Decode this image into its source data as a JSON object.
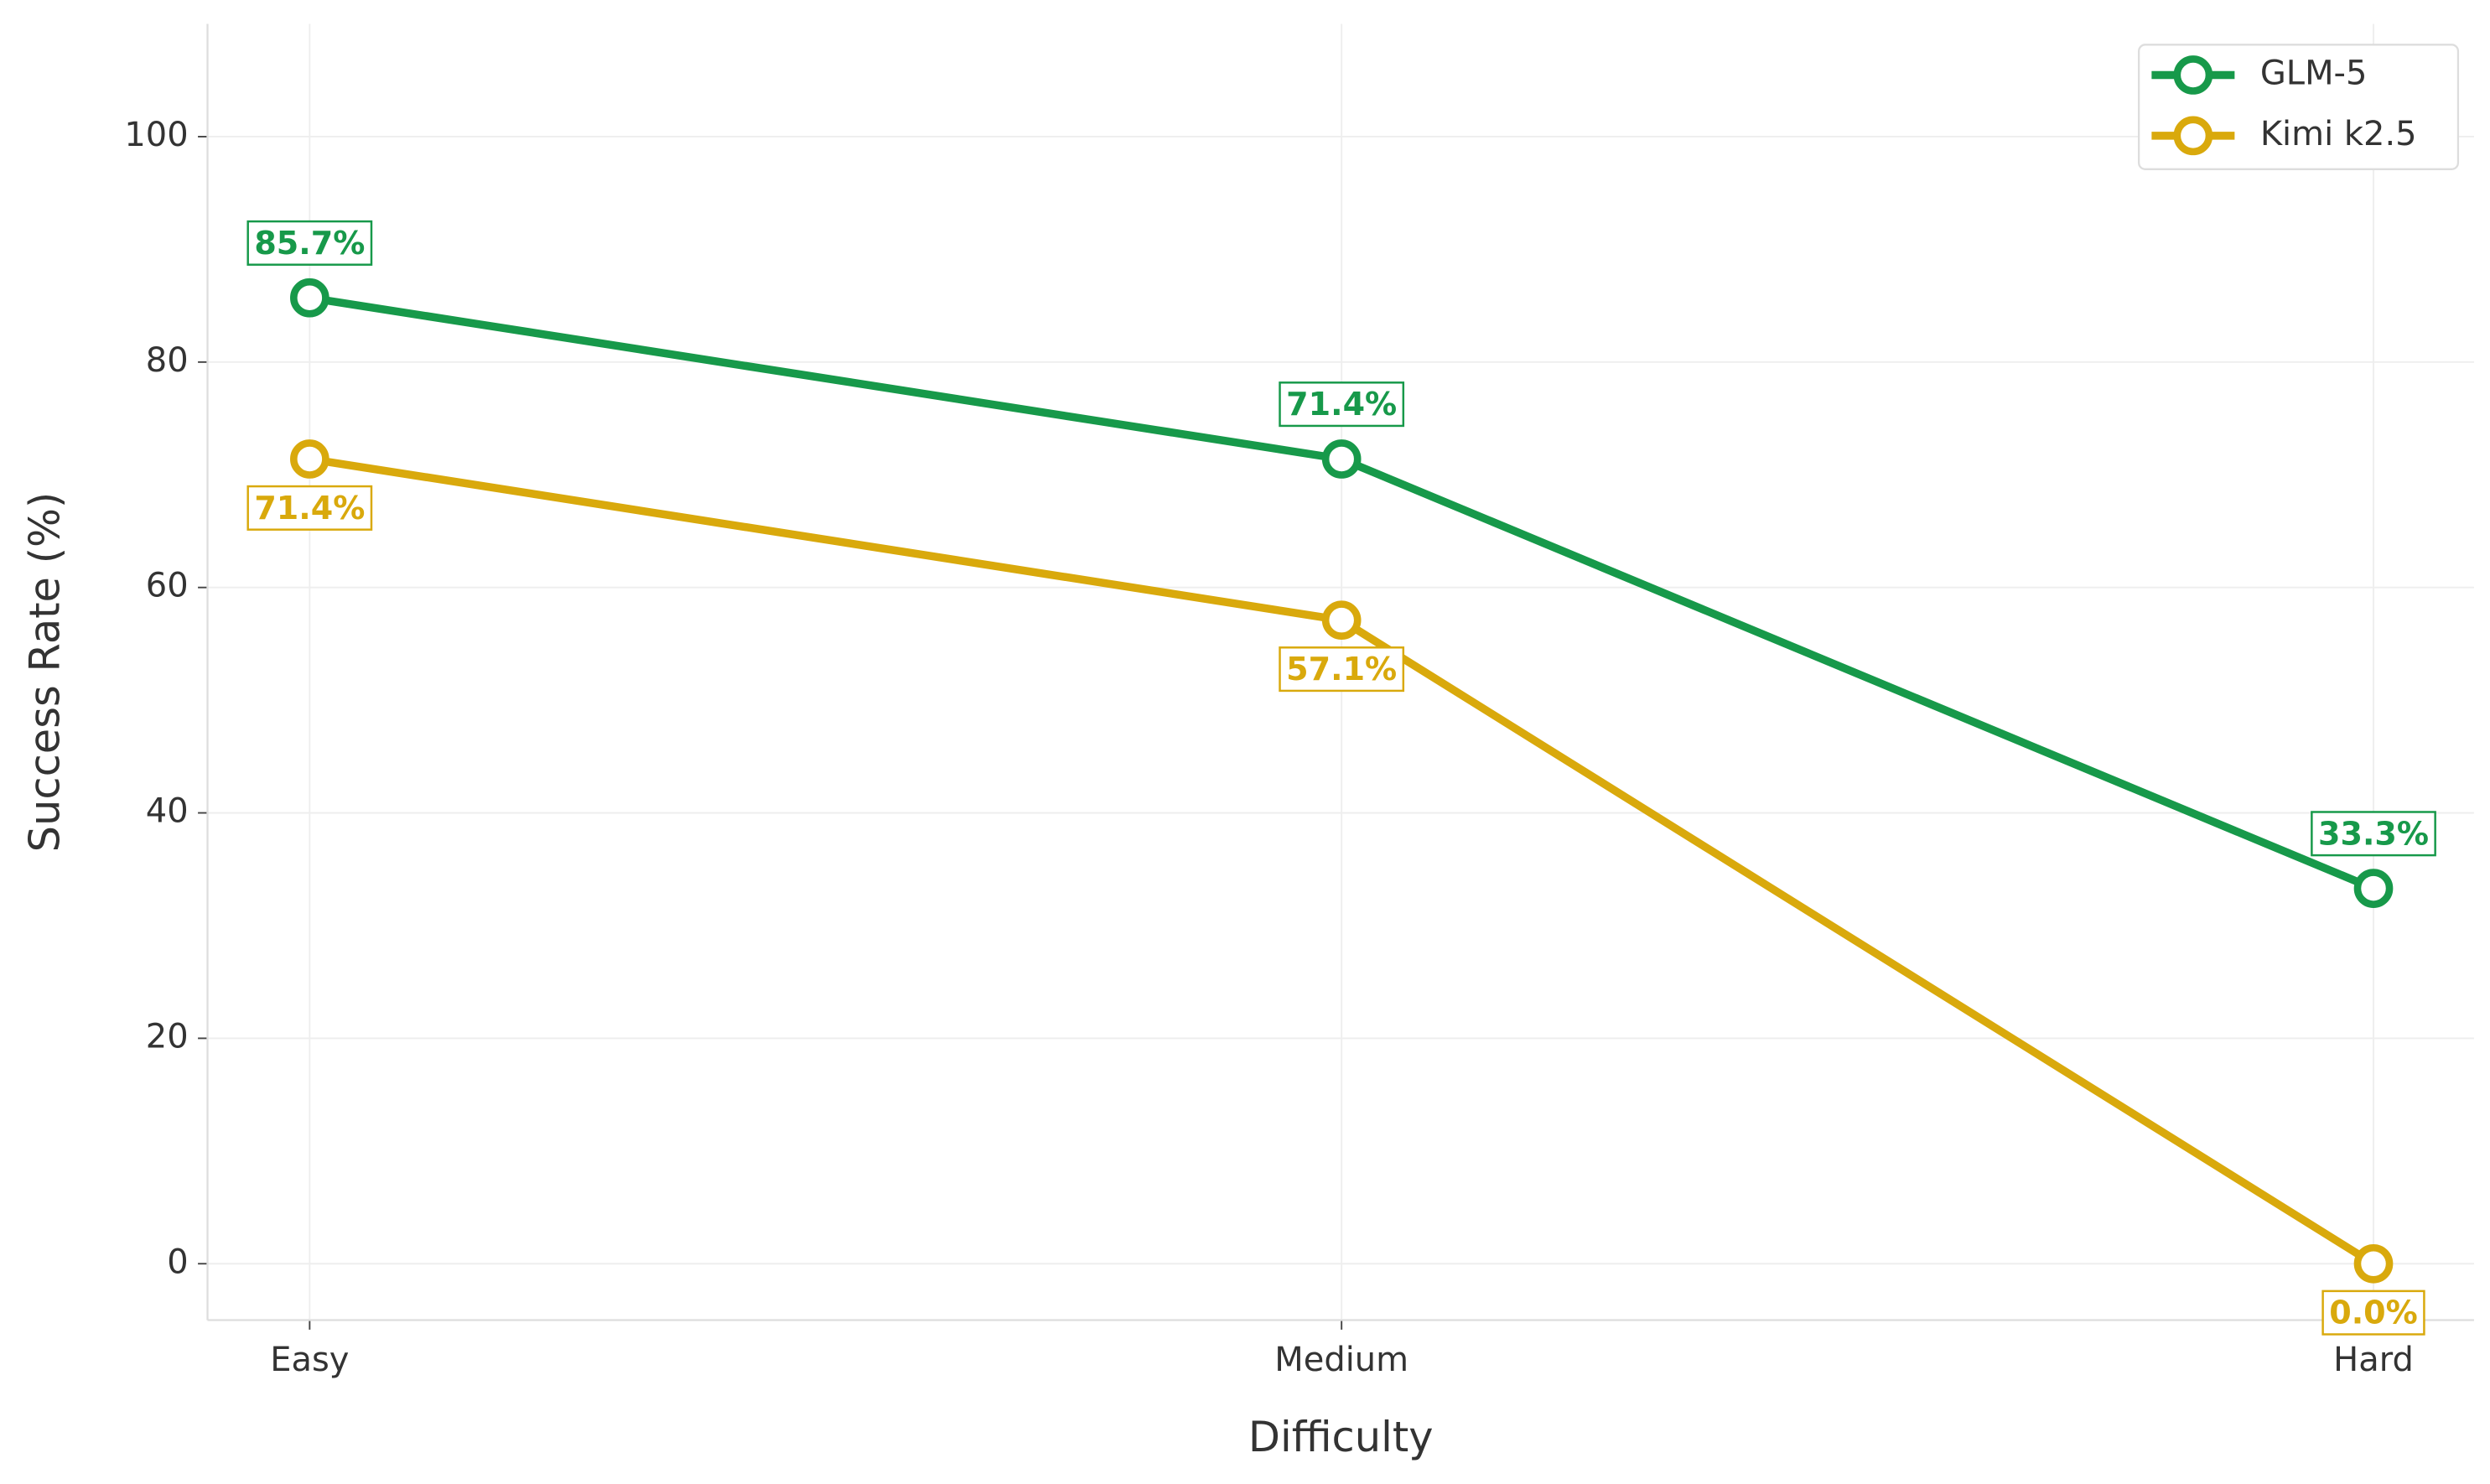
{
  "chart_data": {
    "type": "line",
    "x_label": "Difficulty",
    "y_label": "Success Rate (%)",
    "categories": [
      "Easy",
      "Medium",
      "Hard"
    ],
    "series": [
      {
        "name": "GLM-5",
        "color": "#17994a",
        "values": [
          85.7,
          71.4,
          33.3
        ],
        "value_labels": [
          "85.7%",
          "71.4%",
          "33.3%"
        ]
      },
      {
        "name": "Kimi k2.5",
        "color": "#d9a90c",
        "values": [
          71.4,
          57.1,
          0.0
        ],
        "value_labels": [
          "71.4%",
          "57.1%",
          "0.0%"
        ]
      }
    ],
    "ylim": [
      -5,
      110
    ],
    "yticks": [
      0,
      20,
      40,
      60,
      80,
      100
    ],
    "grid": true,
    "legend": "upper right"
  }
}
